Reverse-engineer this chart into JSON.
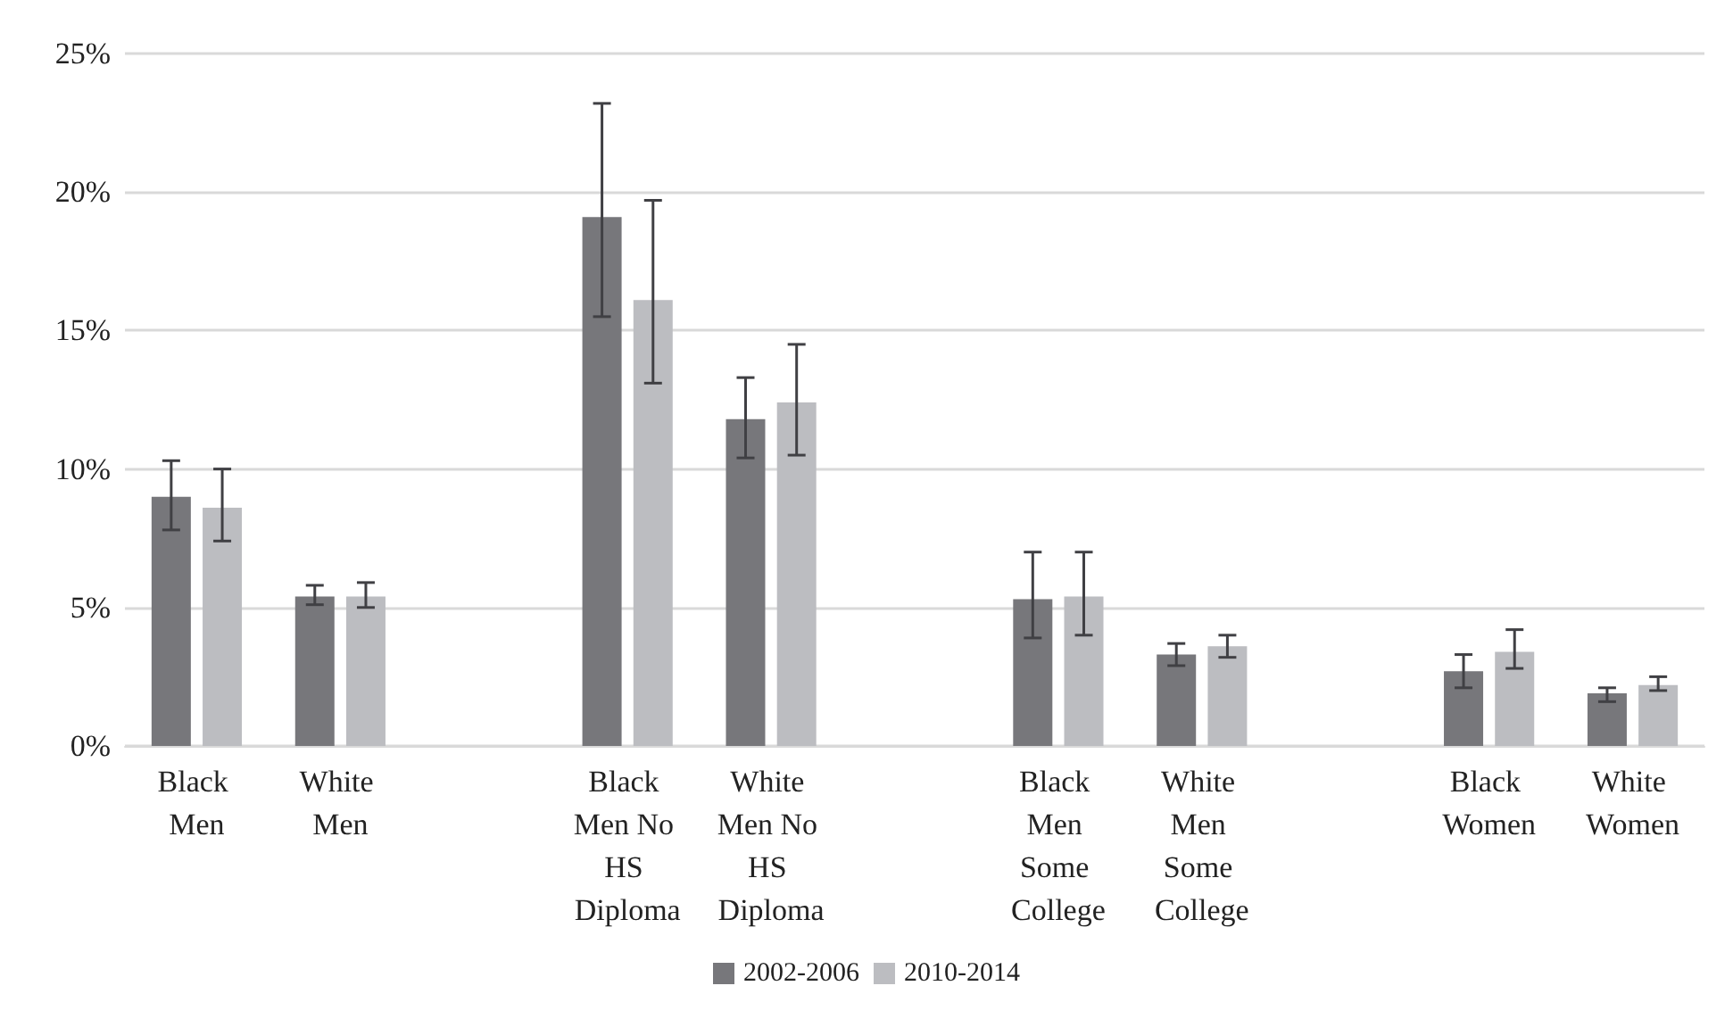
{
  "chart_data": {
    "type": "bar",
    "categories": [
      "Black Men",
      "White Men",
      null,
      "Black Men No HS Diploma",
      "White Men No HS Diploma",
      null,
      "Black Men Some College",
      "White Men Some College",
      null,
      "Black Women",
      "White Women"
    ],
    "series": [
      {
        "name": "2002-2006",
        "color": "#77777b",
        "values": [
          9.0,
          5.4,
          null,
          19.1,
          11.8,
          null,
          5.3,
          3.3,
          null,
          2.7,
          1.9
        ],
        "errors": [
          [
            7.8,
            10.3
          ],
          [
            5.1,
            5.8
          ],
          null,
          [
            15.5,
            23.2
          ],
          [
            10.4,
            13.3
          ],
          null,
          [
            3.9,
            7.0
          ],
          [
            2.9,
            3.7
          ],
          null,
          [
            2.1,
            3.3
          ],
          [
            1.6,
            2.1
          ]
        ]
      },
      {
        "name": "2010-2014",
        "color": "#bcbdc1",
        "values": [
          8.6,
          5.4,
          null,
          16.1,
          12.4,
          null,
          5.4,
          3.6,
          null,
          3.4,
          2.2
        ],
        "errors": [
          [
            7.4,
            10.0
          ],
          [
            5.0,
            5.9
          ],
          null,
          [
            13.1,
            19.7
          ],
          [
            10.5,
            14.5
          ],
          null,
          [
            4.0,
            7.0
          ],
          [
            3.2,
            4.0
          ],
          null,
          [
            2.8,
            4.2
          ],
          [
            2.0,
            2.5
          ]
        ]
      }
    ],
    "ylim": [
      0,
      25
    ],
    "yticks": [
      {
        "value": 0,
        "label": "0%"
      },
      {
        "value": 5,
        "label": "5%"
      },
      {
        "value": 10,
        "label": "10%"
      },
      {
        "value": 15,
        "label": "15%"
      },
      {
        "value": 20,
        "label": "20%"
      },
      {
        "value": 25,
        "label": "25%"
      }
    ],
    "grid": "y",
    "legend": "bottom"
  }
}
